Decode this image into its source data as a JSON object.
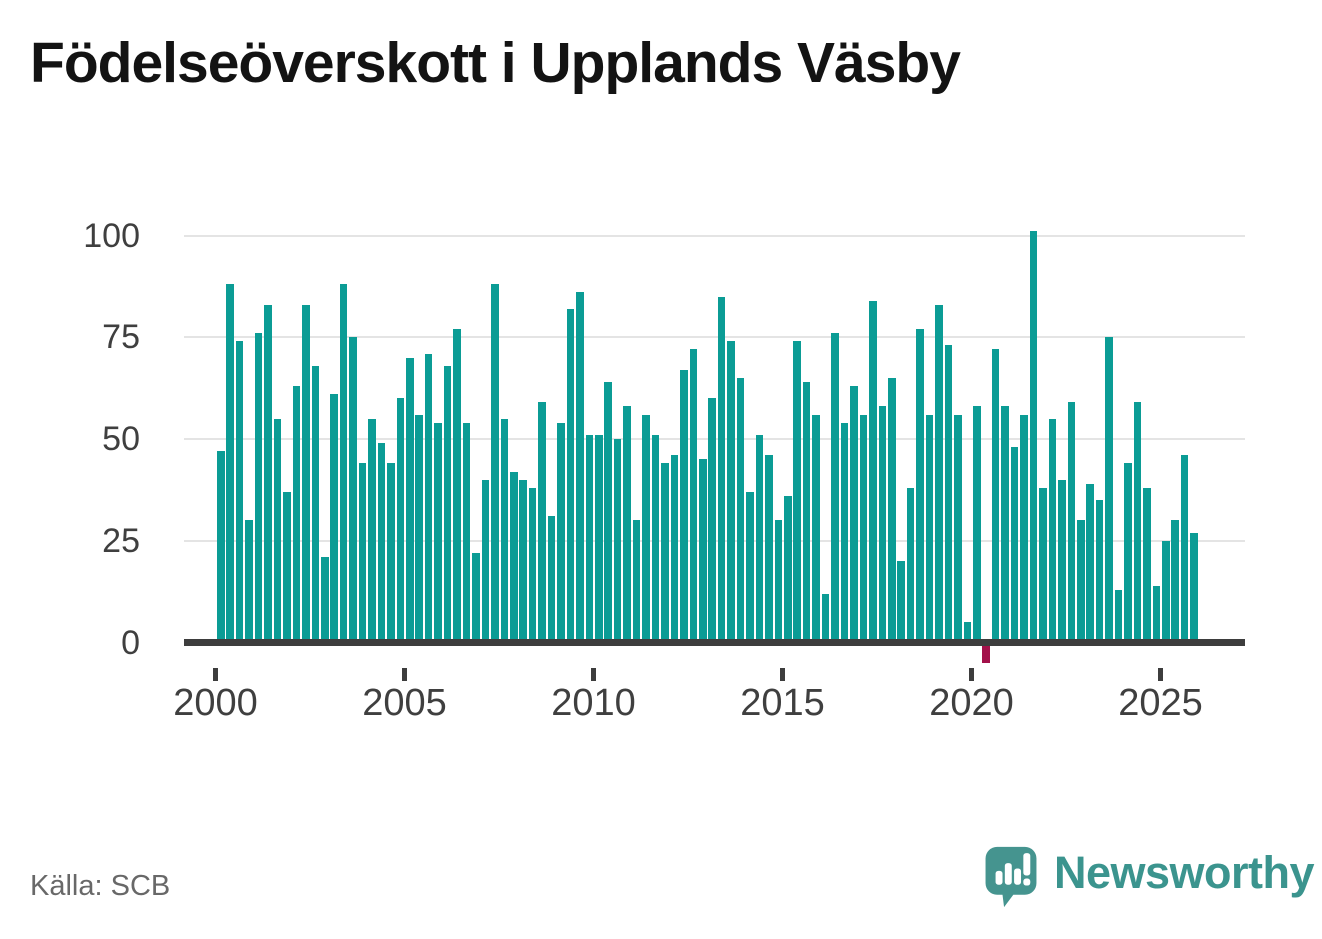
{
  "title": "Födelseöverskott i Upplands Väsby",
  "source": "Källa: SCB",
  "branding": {
    "logo_text": "Newsworthy",
    "logo_mark": "speech-bubble-with-bar-chart-and-exclamation"
  },
  "colors": {
    "bar_positive": "#0b9c95",
    "bar_negative": "#a3114a",
    "axis": "#3d3d3d",
    "gridline": "#e4e4e4",
    "tick_label": "#3f3f3f",
    "title_text": "#131313",
    "source_text": "#686868",
    "logo_teal": "#45948f",
    "background": "#ffffff"
  },
  "chart_data": {
    "type": "bar",
    "title": "Födelseöverskott i Upplands Väsby",
    "xlabel": "",
    "ylabel": "",
    "start_year": 2000,
    "end_year": 2025,
    "periods_per_year": 4,
    "values": [
      47,
      88,
      74,
      30,
      76,
      83,
      55,
      37,
      63,
      83,
      68,
      21,
      61,
      88,
      75,
      44,
      55,
      49,
      44,
      60,
      70,
      56,
      71,
      54,
      68,
      77,
      54,
      22,
      40,
      88,
      55,
      42,
      40,
      38,
      59,
      31,
      54,
      82,
      86,
      51,
      51,
      64,
      50,
      58,
      30,
      56,
      51,
      44,
      46,
      67,
      72,
      45,
      60,
      85,
      74,
      65,
      37,
      51,
      46,
      30,
      36,
      74,
      64,
      56,
      12,
      76,
      54,
      63,
      56,
      84,
      58,
      65,
      20,
      38,
      77,
      56,
      83,
      73,
      56,
      5,
      58,
      -5,
      72,
      58,
      48,
      56,
      101,
      38,
      55,
      40,
      59,
      30,
      39,
      35,
      75,
      13,
      44,
      59,
      38,
      14,
      25,
      30,
      46,
      27
    ],
    "y_ticks": [
      0,
      25,
      50,
      75,
      100
    ],
    "x_ticks": [
      2000,
      2005,
      2010,
      2015,
      2020,
      2025
    ],
    "ylim": [
      -8,
      105
    ],
    "grid": true,
    "legend": false
  }
}
